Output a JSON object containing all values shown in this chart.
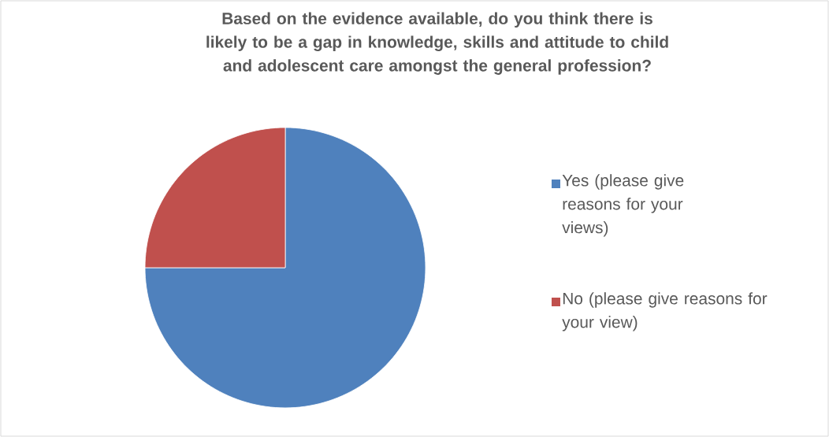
{
  "chart_data": {
    "type": "pie",
    "title": "Based on the evidence available, do you think there is likely to be a gap in knowledge, skills and attitude to child and adolescent care amongst the general profession?",
    "categories": [
      "Yes (please give reasons for your views)",
      "No (please give reasons for your view)"
    ],
    "values": [
      75,
      25
    ],
    "colors": [
      "#4f81bd",
      "#c0504d"
    ],
    "legend": "right"
  }
}
